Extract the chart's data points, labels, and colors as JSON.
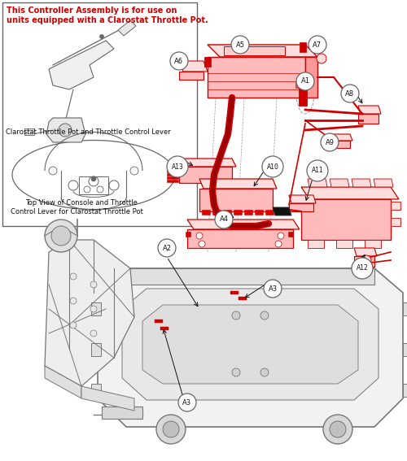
{
  "bg_color": "#ffffff",
  "red": "#cc0000",
  "gray": "#666666",
  "lgray": "#999999",
  "black": "#111111",
  "frame_fill": "#f2f2f2",
  "frame_edge": "#777777",
  "red_fill": "#ffdddd",
  "red_fill2": "#ffbbbb",
  "red_fill3": "#ff9999",
  "inset_title_line1": "This Controller Assembly is for use on",
  "inset_title_line2": "units equipped with a Clarostat Throttle Pot.",
  "inset_label1": "Clarostat Throttle Pot and Throttle Control Lever",
  "inset_label2a": "Top View of Console and Throttle",
  "inset_label2b": "Control Lever for Clarostat Throttle Pot",
  "labels": [
    [
      "A5",
      295,
      55
    ],
    [
      "A6",
      220,
      75
    ],
    [
      "A7",
      390,
      55
    ],
    [
      "A1",
      375,
      100
    ],
    [
      "A8",
      430,
      115
    ],
    [
      "A9",
      405,
      175
    ],
    [
      "A10",
      335,
      205
    ],
    [
      "A11",
      390,
      210
    ],
    [
      "A13",
      218,
      205
    ],
    [
      "A4",
      275,
      270
    ],
    [
      "A2",
      205,
      305
    ],
    [
      "A3",
      335,
      355
    ],
    [
      "A12",
      445,
      330
    ],
    [
      "A3",
      230,
      495
    ]
  ]
}
